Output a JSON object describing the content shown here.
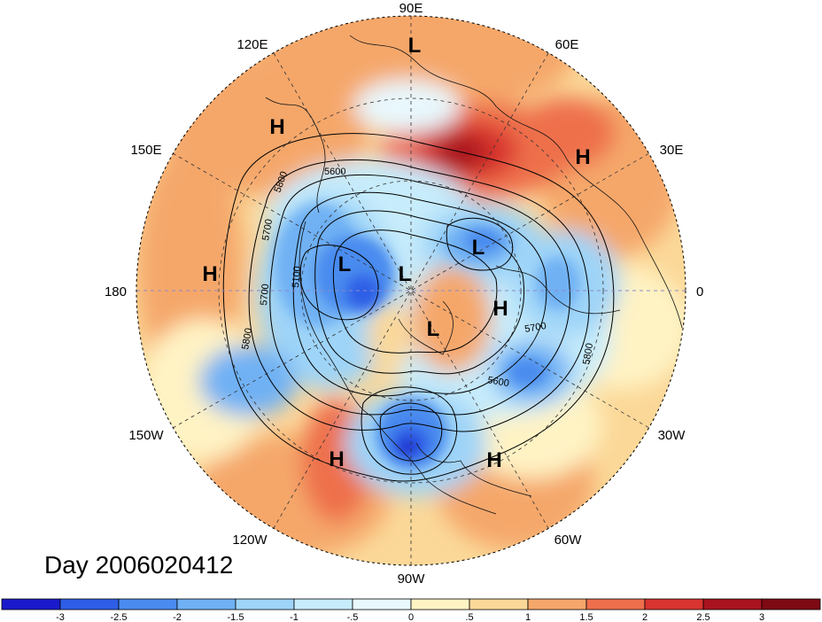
{
  "title": "Day 2006020412",
  "longitude_labels": [
    "90E",
    "60E",
    "30E",
    "0",
    "30W",
    "60W",
    "90W",
    "120W",
    "150W",
    "180",
    "150E",
    "120E"
  ],
  "pressure_centers": [
    {
      "type": "L",
      "region": "Central Asia"
    },
    {
      "type": "H",
      "region": "East Asia"
    },
    {
      "type": "H",
      "region": "Middle East"
    },
    {
      "type": "H",
      "region": "North Pacific"
    },
    {
      "type": "L",
      "region": "East Siberia"
    },
    {
      "type": "L",
      "region": "Arctic Ocean"
    },
    {
      "type": "L",
      "region": "Barents Sea"
    },
    {
      "type": "H",
      "region": "Northwest Europe"
    },
    {
      "type": "L",
      "region": "Greenland"
    },
    {
      "type": "H",
      "region": "Western North America"
    },
    {
      "type": "H",
      "region": "North Atlantic"
    }
  ],
  "contour_labels": [
    "5600",
    "5800",
    "5700",
    "5100",
    "5700",
    "5800",
    "5700",
    "5800",
    "5600"
  ],
  "colorbar": {
    "ticks": [
      "-3",
      "-2.5",
      "-2",
      "-1.5",
      "-1",
      "-.5",
      "0",
      ".5",
      "1",
      "1.5",
      "2",
      "2.5",
      "3"
    ],
    "colors": [
      "#1a1acc",
      "#2e5ee6",
      "#4a8bef",
      "#6fb1f4",
      "#9ed4f8",
      "#c7ecfb",
      "#e8f8fd",
      "#fff3c4",
      "#fbd898",
      "#f5a76b",
      "#ee6f4c",
      "#d9342f",
      "#a8131f",
      "#7e0a14"
    ]
  }
}
